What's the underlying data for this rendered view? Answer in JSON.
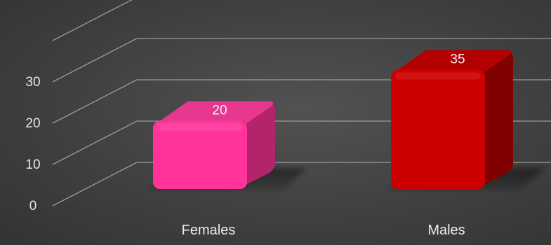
{
  "chart_data": {
    "type": "bar",
    "categories": [
      "Females",
      "Males"
    ],
    "values": [
      20,
      35
    ],
    "ylim": [
      0,
      40
    ],
    "yticks": [
      0,
      10,
      20,
      30
    ],
    "data_labels": [
      "20",
      "35"
    ],
    "grid": true,
    "three_d": true,
    "colors": {
      "background": "#404040",
      "gridline": "#9a9a9a",
      "series": [
        "#ff3399",
        "#cc0000"
      ],
      "series_top": [
        "#e6388f",
        "#b30000"
      ],
      "series_side": [
        "#b3246b",
        "#800000"
      ]
    }
  }
}
